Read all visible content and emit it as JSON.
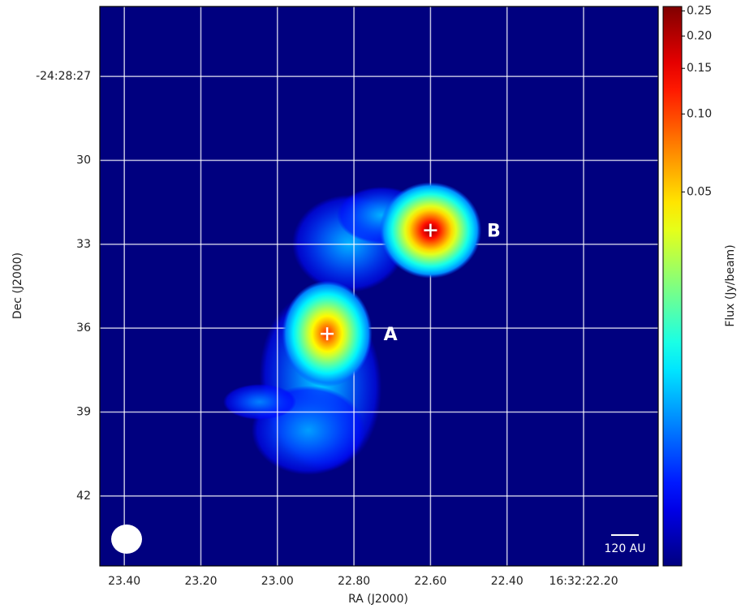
{
  "chart_data": {
    "type": "image",
    "xlabel": "RA (J2000)",
    "ylabel": "Dec (J2000)",
    "xlim": [
      23.464,
      22.005
    ],
    "xticks": [
      {
        "value": 23.4,
        "label": "23.40"
      },
      {
        "value": 23.2,
        "label": "23.20"
      },
      {
        "value": 23.0,
        "label": "23.00"
      },
      {
        "value": 22.8,
        "label": "22.80"
      },
      {
        "value": 22.6,
        "label": "22.60"
      },
      {
        "value": 22.4,
        "label": "22.40"
      },
      {
        "value": 22.2,
        "label": "16:32:22.20"
      }
    ],
    "ylim": [
      24.5,
      44.5
    ],
    "yticks": [
      {
        "value": 27,
        "label": "-24:28:27"
      },
      30,
      33,
      36,
      39,
      42
    ],
    "grid": true,
    "colorbar": {
      "label": "Flux (Jy/beam)",
      "scale": "log",
      "clim": [
        0.0018,
        0.26
      ],
      "ticks": [
        0.25,
        {
          "value": 0.2,
          "label": "0.20"
        },
        0.15,
        {
          "value": 0.1,
          "label": "0.10"
        },
        0.05
      ]
    },
    "sources": [
      {
        "label": "A",
        "ra": 22.87,
        "dec": 36.2,
        "peak_flux": 0.12
      },
      {
        "label": "B",
        "ra": 22.6,
        "dec": 32.5,
        "peak_flux": 0.25
      }
    ],
    "scale_bar": "120 AU"
  }
}
